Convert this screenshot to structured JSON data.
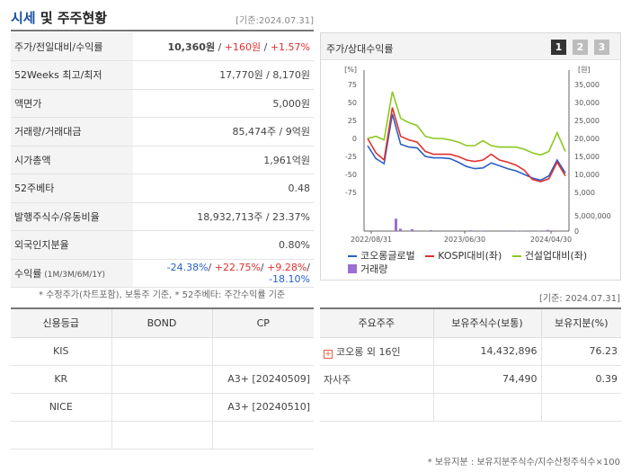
{
  "header": {
    "title_part1": "시세",
    "title_part2": " 및 주주현황",
    "date": "[기준:2024.07.31]"
  },
  "summary": [
    {
      "label": "주가/전일대비/수익률",
      "parts": [
        {
          "text": "10,360원",
          "cls": "bold"
        },
        {
          "text": " / ",
          "cls": ""
        },
        {
          "text": "+160원",
          "cls": "red"
        },
        {
          "text": " / ",
          "cls": ""
        },
        {
          "text": "+1.57%",
          "cls": "red"
        }
      ]
    },
    {
      "label": "52Weeks 최고/최저",
      "parts": [
        {
          "text": "17,770원 / 8,170원",
          "cls": ""
        }
      ]
    },
    {
      "label": "액면가",
      "parts": [
        {
          "text": "5,000원",
          "cls": ""
        }
      ]
    },
    {
      "label": "거래량/거래대금",
      "parts": [
        {
          "text": "85,474주 / 9억원",
          "cls": ""
        }
      ]
    },
    {
      "label": "시가총액",
      "parts": [
        {
          "text": "1,961억원",
          "cls": ""
        }
      ]
    },
    {
      "label": "52주베타",
      "parts": [
        {
          "text": "0.48",
          "cls": ""
        }
      ]
    },
    {
      "label": "발행주식수/유동비율",
      "parts": [
        {
          "text": "18,932,713주 / 23.37%",
          "cls": ""
        }
      ]
    },
    {
      "label": "외국인지분율",
      "parts": [
        {
          "text": "0.80%",
          "cls": ""
        }
      ]
    },
    {
      "label": "수익률",
      "label_small": " (1M/3M/6M/1Y)",
      "parts": [
        {
          "text": "-24.38%",
          "cls": "blue"
        },
        {
          "text": "/ ",
          "cls": ""
        },
        {
          "text": "+22.75%",
          "cls": "red"
        },
        {
          "text": "/ ",
          "cls": ""
        },
        {
          "text": "+9.28%",
          "cls": "red"
        },
        {
          "text": "/ ",
          "cls": ""
        },
        {
          "text": "-18.10%",
          "cls": "blue"
        }
      ]
    }
  ],
  "summary_note": "* 수정주가(차트포함), 보통주 기준, * 52주베타: 주간수익률 기준",
  "chart_panel": {
    "title": "주가/상대수익률",
    "pages": [
      "1",
      "2",
      "3"
    ]
  },
  "chart_data": {
    "type": "line",
    "left_axis": {
      "unit": "[%]",
      "ticks": [
        "75",
        "50",
        "25",
        "0",
        "-25",
        "-50",
        "-75"
      ],
      "range": [
        -75,
        75
      ]
    },
    "right_axis": {
      "unit": "[원]",
      "ticks": [
        "35,000",
        "30,000",
        "25,000",
        "20,000",
        "15,000",
        "10,000",
        "5,000"
      ],
      "range": [
        5000,
        35000
      ]
    },
    "volume_axis": {
      "ticks": [
        "5,000,000",
        "0"
      ],
      "max": 5500000
    },
    "x_ticks": [
      "2022/08/31",
      "2023/06/30",
      "2024/04/30"
    ],
    "series": [
      {
        "name": "코오롱글로벌",
        "color": "#2a5fc8",
        "values": [
          -10,
          -28,
          -35,
          34,
          -8,
          -12,
          -13,
          -25,
          -27,
          -27,
          -28,
          -33,
          -39,
          -42,
          -41,
          -34,
          -38,
          -42,
          -45,
          -50,
          -55,
          -58,
          -52,
          -30,
          -48
        ]
      },
      {
        "name": "KOSPI대비(좌)",
        "color": "#e03030",
        "values": [
          0,
          -20,
          -30,
          43,
          3,
          -2,
          -5,
          -18,
          -22,
          -22,
          -22,
          -25,
          -30,
          -32,
          -30,
          -22,
          -30,
          -33,
          -37,
          -44,
          -57,
          -60,
          -56,
          -33,
          -52
        ]
      },
      {
        "name": "건설업대비(좌)",
        "color": "#8cc820",
        "values": [
          0,
          3,
          -2,
          65,
          28,
          22,
          18,
          3,
          0,
          0,
          -2,
          -5,
          -10,
          -10,
          -3,
          -10,
          -12,
          -12,
          -12,
          -15,
          -20,
          -23,
          -18,
          8,
          -18
        ]
      }
    ],
    "volume": {
      "name": "거래량",
      "color": "#9b6fd0",
      "values": [
        0,
        0,
        0,
        0,
        0,
        0,
        0,
        0,
        0,
        0,
        0,
        0,
        0,
        0,
        0,
        0,
        0,
        0,
        0,
        0,
        0,
        0,
        0,
        0,
        0,
        0,
        0,
        0,
        0,
        0,
        0,
        0,
        0,
        0,
        0,
        0,
        0,
        0,
        0,
        0,
        0,
        0,
        0,
        0,
        0,
        0,
        0,
        0,
        0,
        0,
        0,
        0,
        0,
        0,
        0,
        0,
        0,
        0,
        0,
        0,
        0,
        0,
        0,
        0,
        0,
        0,
        0,
        0,
        0,
        0,
        0,
        0,
        0,
        0,
        0,
        0,
        0,
        0,
        0,
        0,
        0,
        0,
        0,
        0,
        0,
        0,
        0,
        0,
        0,
        0,
        0,
        0,
        0,
        0,
        0,
        0,
        0,
        0,
        0,
        0,
        0,
        0,
        0,
        0,
        0,
        0,
        0,
        0,
        0,
        0,
        0,
        0,
        0,
        0,
        0,
        0,
        0,
        0,
        0,
        0,
        0,
        0,
        0,
        0,
        0,
        0,
        0,
        0,
        0,
        0,
        0,
        0,
        0,
        0,
        0,
        0,
        0,
        0,
        0,
        0,
        0,
        0,
        0,
        0,
        0,
        0,
        0,
        0,
        0,
        0,
        0,
        0,
        0,
        0,
        0,
        0,
        0,
        0,
        0,
        0,
        0,
        0,
        0,
        0,
        0,
        0,
        0,
        0,
        0,
        0,
        0,
        0,
        0,
        0,
        0,
        0,
        0,
        0,
        0,
        0,
        0,
        0,
        0,
        0,
        0,
        0,
        0,
        0,
        0,
        0,
        0,
        0,
        0,
        0,
        0,
        0,
        0,
        0,
        0,
        0
      ]
    }
  },
  "date2": "[기준: 2024.07.31]",
  "credit": {
    "headers": [
      "신용등급",
      "BOND",
      "CP"
    ],
    "rows": [
      [
        "KIS",
        "",
        ""
      ],
      [
        "KR",
        "",
        "A3+ [20240509]"
      ],
      [
        "NICE",
        "",
        "A3+ [20240510]"
      ],
      [
        "",
        "",
        ""
      ]
    ]
  },
  "holders": {
    "headers": [
      "주요주주",
      "보유주식수(보통)",
      "보유지분(%)"
    ],
    "rows": [
      {
        "name": "코오롱 외 16인",
        "expand": "+",
        "shares": "14,432,896",
        "pct": "76.23"
      },
      {
        "name": "자사주",
        "expand": "",
        "shares": "74,490",
        "pct": "0.39"
      },
      {
        "name": "",
        "expand": "",
        "shares": "",
        "pct": ""
      }
    ]
  },
  "holders_note": "* 보유지분 : 보유지분주식수/지수산정주식수×100"
}
